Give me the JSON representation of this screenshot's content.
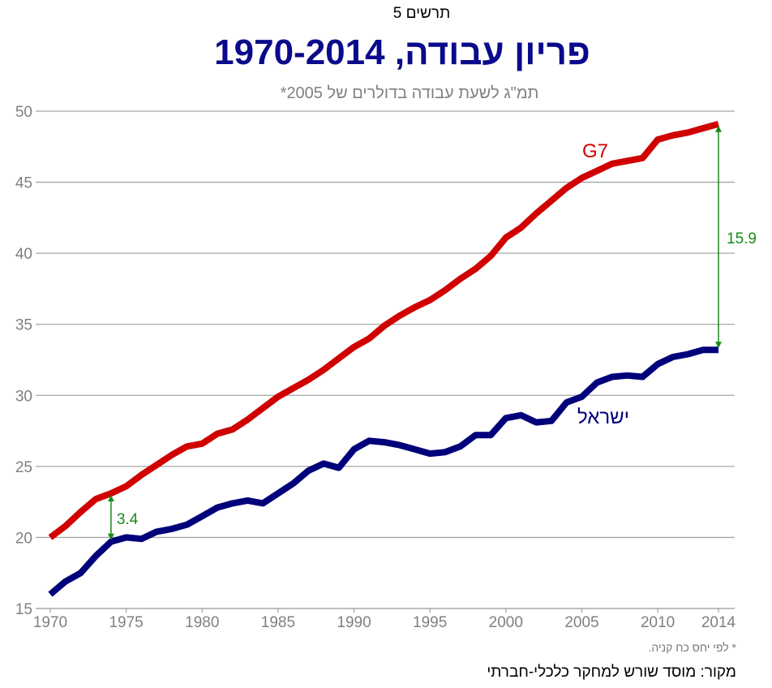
{
  "header": {
    "figure_label": "תרשים 5",
    "title": "פריון עבודה, 1970-2014",
    "subtitle": "תמ\"ג לשעת עבודה בדולרים של 2005*"
  },
  "footer": {
    "footnote": "* לפי יחס כח קניה.",
    "source": "מקור:  מוסד שורש למחקר כלכלי-חברתי"
  },
  "colors": {
    "g7": "#d00000",
    "israel": "#00007a",
    "gap": "#1a8a1a",
    "grid": "#a6a6a6",
    "axis_text": "#808080"
  },
  "chart_data": {
    "type": "line",
    "xlim": [
      1970,
      2014
    ],
    "ylim": [
      15,
      50
    ],
    "yticks": [
      15,
      20,
      25,
      30,
      35,
      40,
      45,
      50
    ],
    "xticks": [
      1970,
      1975,
      1980,
      1985,
      1990,
      1995,
      2000,
      2005,
      2010,
      2014
    ],
    "grid": true,
    "x": [
      1970,
      1971,
      1972,
      1973,
      1974,
      1975,
      1976,
      1977,
      1978,
      1979,
      1980,
      1981,
      1982,
      1983,
      1984,
      1985,
      1986,
      1987,
      1988,
      1989,
      1990,
      1991,
      1992,
      1993,
      1994,
      1995,
      1996,
      1997,
      1998,
      1999,
      2000,
      2001,
      2002,
      2003,
      2004,
      2005,
      2006,
      2007,
      2008,
      2009,
      2010,
      2011,
      2012,
      2013,
      2014
    ],
    "series": [
      {
        "name": "G7",
        "values": [
          20.0,
          20.8,
          21.8,
          22.7,
          23.1,
          23.6,
          24.4,
          25.1,
          25.8,
          26.4,
          26.6,
          27.3,
          27.6,
          28.3,
          29.1,
          29.9,
          30.5,
          31.1,
          31.8,
          32.6,
          33.4,
          34.0,
          34.9,
          35.6,
          36.2,
          36.7,
          37.4,
          38.2,
          38.9,
          39.8,
          41.1,
          41.8,
          42.8,
          43.7,
          44.6,
          45.3,
          45.8,
          46.3,
          46.5,
          46.7,
          48.0,
          48.3,
          48.5,
          48.8,
          49.1
        ]
      },
      {
        "name": "ישראל",
        "values": [
          16.0,
          16.9,
          17.5,
          18.7,
          19.7,
          20.0,
          19.9,
          20.4,
          20.6,
          20.9,
          21.5,
          22.1,
          22.4,
          22.6,
          22.4,
          23.1,
          23.8,
          24.7,
          25.2,
          24.9,
          26.2,
          26.8,
          26.7,
          26.5,
          26.2,
          25.9,
          26.0,
          26.4,
          27.2,
          27.2,
          28.4,
          28.6,
          28.1,
          28.2,
          29.5,
          29.9,
          30.9,
          31.3,
          31.4,
          31.3,
          32.2,
          32.7,
          32.9,
          33.2,
          33.2
        ]
      }
    ],
    "annotations": [
      {
        "label": "3.4",
        "x": 1974,
        "y_low": 19.7,
        "y_high": 23.1
      },
      {
        "label": "15.9",
        "x": 2014,
        "y_low": 33.2,
        "y_high": 49.1
      }
    ]
  }
}
